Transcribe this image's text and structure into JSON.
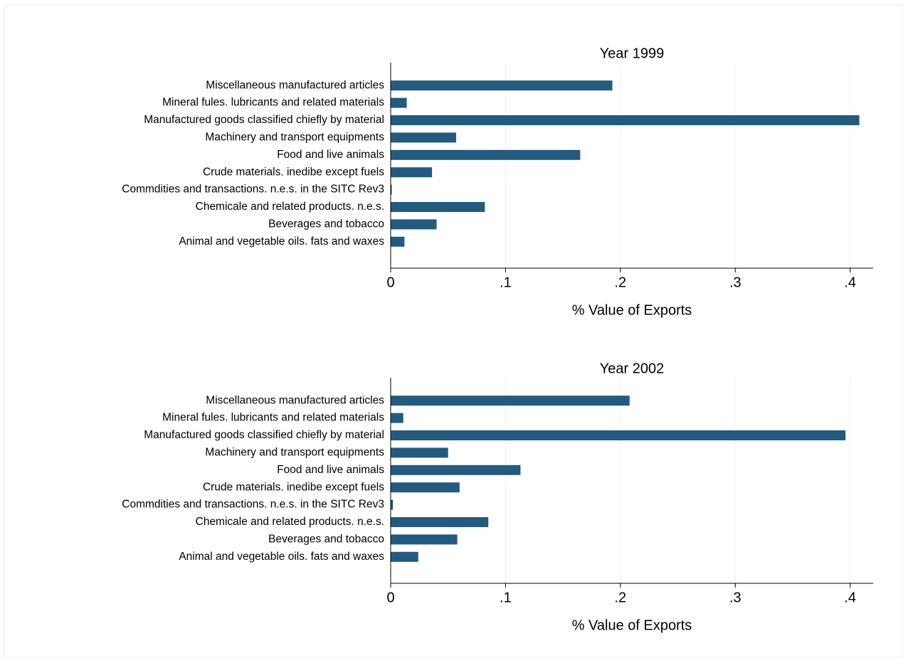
{
  "chart_data": [
    {
      "type": "bar",
      "orientation": "horizontal",
      "title": "Year 1999",
      "x_label": "% Value of Exports",
      "categories": [
        "Miscellaneous manufactured articles",
        "Mineral fules. lubricants and related materials",
        "Manufactured goods classified chiefly by material",
        "Machinery and transport equipments",
        "Food and live animals",
        "Crude materials. inedibe except fuels",
        "Commdities and transactions. n.e.s. in the SITC Rev3",
        "Chemicale and related products. n.e.s.",
        "Beverages and tobacco",
        "Animal and vegetable oils. fats and waxes"
      ],
      "values": [
        0.193,
        0.014,
        0.408,
        0.057,
        0.165,
        0.036,
        0.001,
        0.082,
        0.04,
        0.012
      ],
      "color": "#235a7f",
      "xlim": [
        0,
        0.42
      ],
      "xticks": [
        0,
        {
          "value": 0.1,
          "label": ".1"
        },
        {
          "value": 0.2,
          "label": ".2"
        },
        {
          "value": 0.3,
          "label": ".3"
        },
        {
          "value": 0.4,
          "label": ".4"
        }
      ],
      "grid": true
    },
    {
      "type": "bar",
      "orientation": "horizontal",
      "title": "Year 2002",
      "x_label": "% Value of Exports",
      "categories": [
        "Miscellaneous manufactured articles",
        "Mineral fules. lubricants and related materials",
        "Manufactured goods classified chiefly by material",
        "Machinery and transport equipments",
        "Food and live animals",
        "Crude materials. inedibe except fuels",
        "Commdities and transactions. n.e.s. in the SITC Rev3",
        "Chemicale and related products. n.e.s.",
        "Beverages and tobacco",
        "Animal and vegetable oils. fats and waxes"
      ],
      "values": [
        0.208,
        0.011,
        0.396,
        0.05,
        0.113,
        0.06,
        0.002,
        0.085,
        0.058,
        0.024
      ],
      "color": "#235a7f",
      "xlim": [
        0,
        0.42
      ],
      "xticks": [
        0,
        {
          "value": 0.1,
          "label": ".1"
        },
        {
          "value": 0.2,
          "label": ".2"
        },
        {
          "value": 0.3,
          "label": ".3"
        },
        {
          "value": 0.4,
          "label": ".4"
        }
      ],
      "grid": true
    }
  ]
}
